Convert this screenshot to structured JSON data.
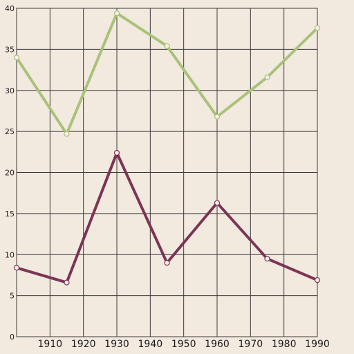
{
  "chart_data": {
    "type": "line",
    "title": "",
    "xlabel": "",
    "ylabel": "",
    "xlim": [
      1900,
      1990
    ],
    "ylim": [
      0,
      40
    ],
    "x_ticks": [
      1910,
      1920,
      1930,
      1940,
      1950,
      1960,
      1970,
      1980,
      1990
    ],
    "x_tick_labels": [
      "1910",
      "1920",
      "1930",
      "1940",
      "1950",
      "1960",
      "1970",
      "1980",
      "1990"
    ],
    "y_ticks": [
      0,
      5,
      10,
      15,
      20,
      25,
      30,
      35,
      40
    ],
    "y_tick_labels": [
      "0",
      "5",
      "10",
      "15",
      "20",
      "25",
      "30",
      "35",
      "40"
    ],
    "grid": true,
    "legend": "none",
    "series": [
      {
        "color": "#a9c27a",
        "x": [
          1900,
          1915,
          1930,
          1945,
          1960,
          1975,
          1990
        ],
        "values": [
          34,
          24.7,
          39.4,
          35.4,
          26.8,
          31.6,
          37.6
        ]
      },
      {
        "color": "#7c3455",
        "x": [
          1900,
          1915,
          1930,
          1945,
          1960,
          1975,
          1990
        ],
        "values": [
          8.4,
          6.6,
          22.4,
          9.0,
          16.3,
          9.5,
          6.9
        ]
      }
    ]
  }
}
